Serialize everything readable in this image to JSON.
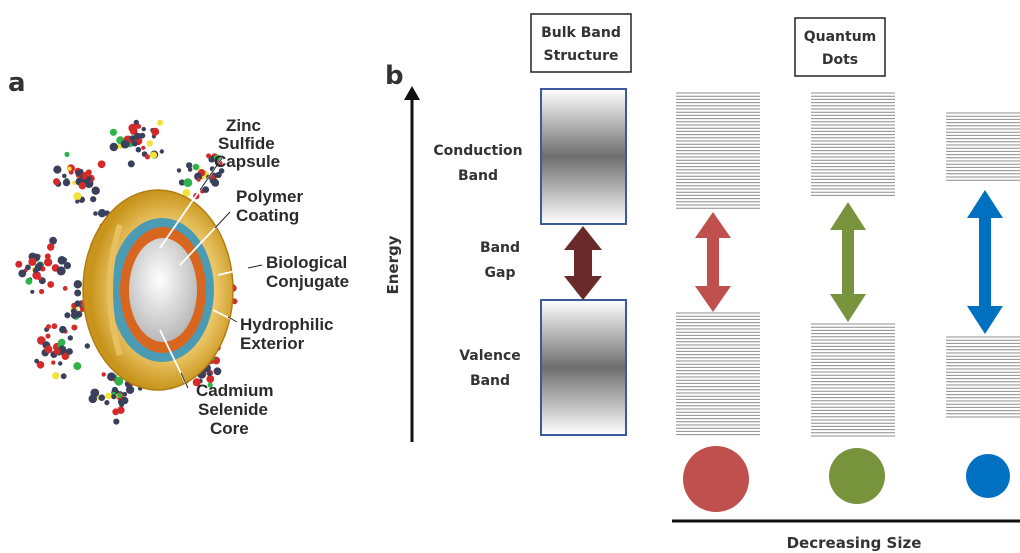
{
  "panel_a": {
    "letter": "a",
    "labels": {
      "zinc": [
        "Zinc",
        "Sulfide",
        "Capsule"
      ],
      "polymer": [
        "Polymer",
        "Coating"
      ],
      "biological": [
        "Biological",
        "Conjugate"
      ],
      "hydrophilic": [
        "Hydrophilic",
        "Exterior"
      ],
      "cadmium": [
        "Cadmium",
        "Selenide",
        "Core"
      ]
    }
  },
  "panel_b": {
    "letter": "b",
    "bulk_box": [
      "Bulk Band",
      "Structure"
    ],
    "qd_box": [
      "Quantum",
      "Dots"
    ],
    "energy_label": "Energy",
    "conduction": [
      "Conduction",
      "Band"
    ],
    "gap": [
      "Band",
      "Gap"
    ],
    "valence": [
      "Valence",
      "Band"
    ],
    "size_label": "Decreasing Size",
    "colors": {
      "gap_arrow": "#6b2a2a",
      "dot_red": "#c0504d",
      "dot_green": "#77933c",
      "dot_blue": "#0070c0"
    }
  }
}
